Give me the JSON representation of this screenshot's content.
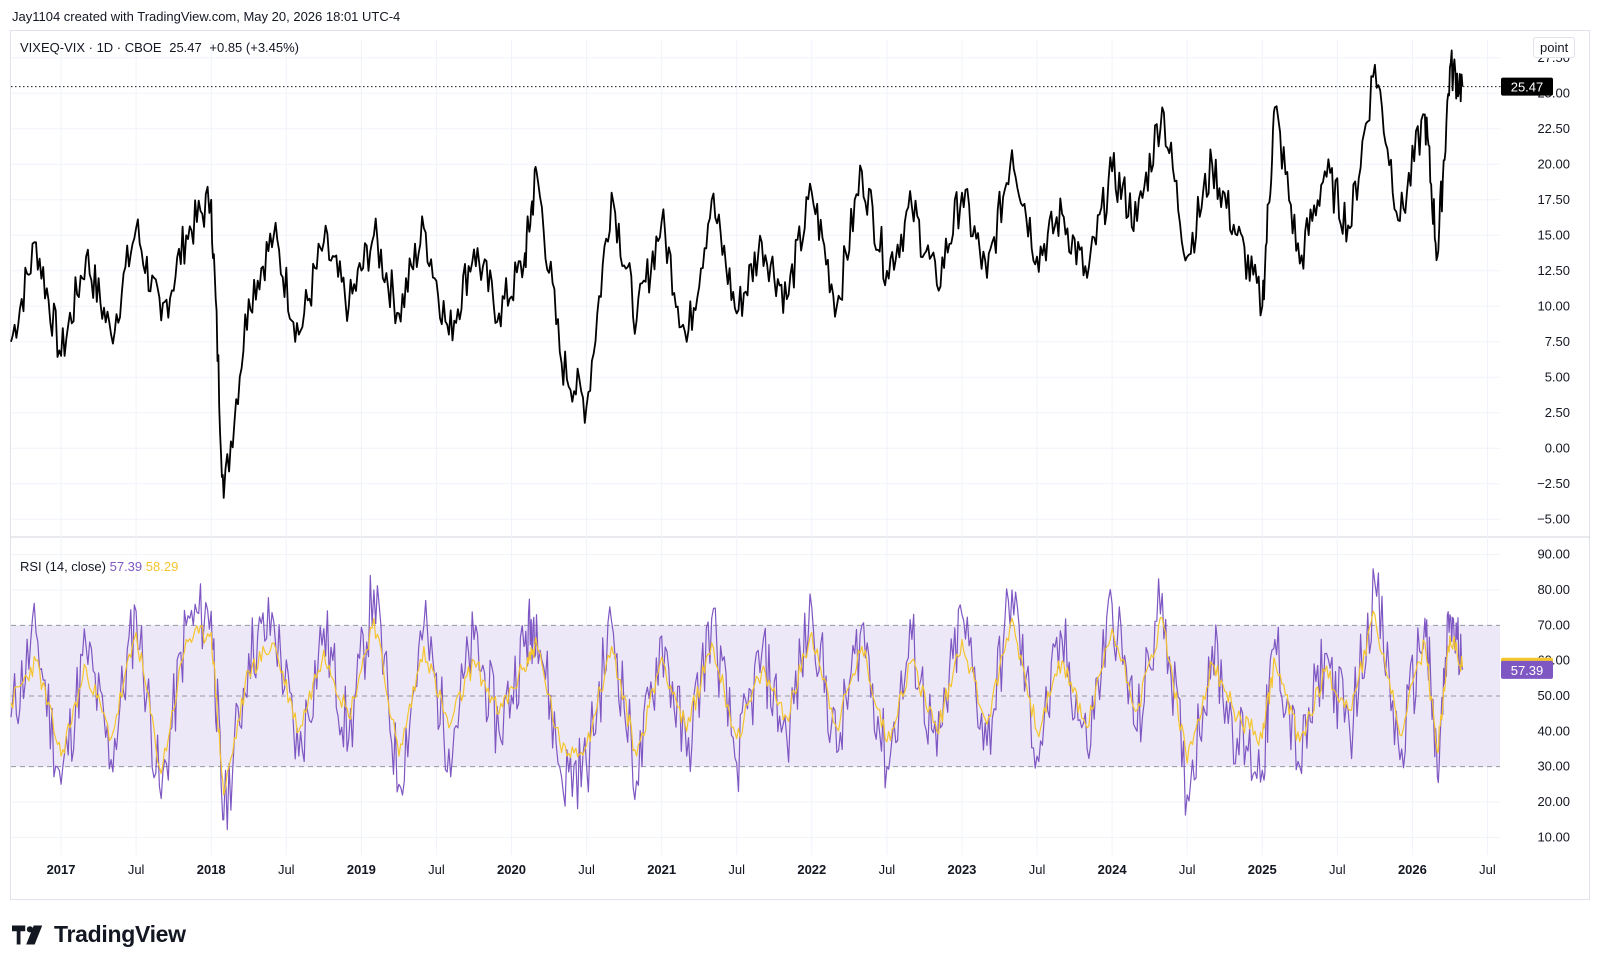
{
  "header": {
    "attribution": "Jay1104 created with TradingView.com, May 20, 2026 18:01 UTC-4"
  },
  "legend": {
    "symbol": "VIXEQ-VIX · 1D · CBOE",
    "last": "25.47",
    "change": "+0.85 (+3.45%)"
  },
  "unit_label": "point",
  "rsi_legend": {
    "label": "RSI (14, close)",
    "rsi_value": "57.39",
    "ma_value": "58.29"
  },
  "brand": {
    "name": "TradingView"
  },
  "colors": {
    "price_line": "#000000",
    "rsi_line": "#7e57c2",
    "rsi_ma_line": "#f5c52f",
    "rsi_band": "#ede8f7",
    "grid": "#f0f3fa"
  },
  "chart_data": [
    {
      "type": "line",
      "title": "VIXEQ-VIX · 1D · CBOE",
      "ylabel": "point",
      "ylim": [
        -6.25,
        28.75
      ],
      "y_ticks": [
        "27.50",
        "25.00",
        "22.50",
        "20.00",
        "17.50",
        "15.00",
        "12.50",
        "10.00",
        "7.50",
        "5.00",
        "2.50",
        "0.00",
        "−2.50",
        "−5.00"
      ],
      "x_ticks": [
        "2017",
        "Jul",
        "2018",
        "Jul",
        "2019",
        "Jul",
        "2020",
        "Jul",
        "2021",
        "Jul",
        "2022",
        "Jul",
        "2023",
        "Jul",
        "2024",
        "Jul",
        "2025",
        "Jul",
        "2026",
        "Jul"
      ],
      "last_value": 25.47,
      "series": [
        {
          "x": [
            "2016-09",
            "2016-11",
            "2017-01",
            "2017-03",
            "2017-05",
            "2017-07",
            "2017-09",
            "2017-11",
            "2018-01",
            "2018-02",
            "2018-04",
            "2018-06",
            "2018-08",
            "2018-10",
            "2018-12",
            "2019-02",
            "2019-04",
            "2019-06",
            "2019-08",
            "2019-10",
            "2019-12",
            "2020-02",
            "2020-03",
            "2020-05",
            "2020-07",
            "2020-09",
            "2020-11",
            "2021-01",
            "2021-03",
            "2021-05",
            "2021-07",
            "2021-09",
            "2021-11",
            "2022-01",
            "2022-03",
            "2022-05",
            "2022-07",
            "2022-09",
            "2022-11",
            "2023-01",
            "2023-03",
            "2023-05",
            "2023-07",
            "2023-09",
            "2023-11",
            "2024-01",
            "2024-03",
            "2024-05",
            "2024-07",
            "2024-09",
            "2024-11",
            "2025-01",
            "2025-02",
            "2025-04",
            "2025-06",
            "2025-08",
            "2025-10",
            "2025-12",
            "2026-02",
            "2026-03",
            "2026-04",
            "2026-05"
          ],
          "values": [
            7.5,
            14.5,
            6.5,
            13.5,
            8.0,
            15.5,
            9.0,
            15.0,
            17.5,
            -3.5,
            10.5,
            15.0,
            8.0,
            14.5,
            10.0,
            15.0,
            9.5,
            15.5,
            8.0,
            14.0,
            9.5,
            13.0,
            19.5,
            6.0,
            3.0,
            18.0,
            9.0,
            16.0,
            7.5,
            17.5,
            9.5,
            14.5,
            10.5,
            18.0,
            10.0,
            19.5,
            12.5,
            17.0,
            11.5,
            18.0,
            12.0,
            21.0,
            13.5,
            16.5,
            12.0,
            19.5,
            16.0,
            24.0,
            13.5,
            20.0,
            15.0,
            10.0,
            24.0,
            13.0,
            19.5,
            15.5,
            27.0,
            16.0,
            23.5,
            13.5,
            26.8,
            25.47
          ]
        }
      ]
    },
    {
      "type": "line",
      "title": "RSI (14, close)",
      "ylim": [
        5,
        95
      ],
      "y_ticks": [
        "90.00",
        "80.00",
        "70.00",
        "60.00",
        "50.00",
        "40.00",
        "30.00",
        "20.00",
        "10.00"
      ],
      "bands": {
        "upper": 70,
        "middle": 50,
        "lower": 30
      },
      "series": [
        {
          "name": "RSI",
          "last_value": 57.39,
          "values": [
            44,
            68,
            25,
            64,
            32,
            74,
            21,
            70,
            74,
            15,
            62,
            71,
            33,
            69,
            38,
            80,
            25,
            70,
            35,
            66,
            40,
            64,
            73,
            27,
            30,
            71,
            26,
            67,
            33,
            72,
            31,
            62,
            38,
            75,
            34,
            70,
            30,
            66,
            33,
            73,
            36,
            80,
            33,
            66,
            35,
            76,
            40,
            79,
            22,
            64,
            38,
            29,
            66,
            30,
            62,
            40,
            82,
            32,
            72,
            27,
            73,
            57.39
          ]
        },
        {
          "name": "MA",
          "last_value": 58.29,
          "values": [
            48,
            60,
            33,
            58,
            38,
            68,
            28,
            66,
            68,
            22,
            57,
            65,
            40,
            63,
            44,
            72,
            33,
            64,
            41,
            60,
            45,
            58,
            65,
            34,
            36,
            64,
            33,
            61,
            40,
            65,
            38,
            57,
            44,
            68,
            41,
            64,
            37,
            60,
            40,
            66,
            42,
            72,
            40,
            60,
            41,
            69,
            46,
            72,
            31,
            59,
            44,
            38,
            60,
            37,
            57,
            46,
            73,
            39,
            65,
            34,
            67,
            58.29
          ]
        }
      ]
    }
  ]
}
